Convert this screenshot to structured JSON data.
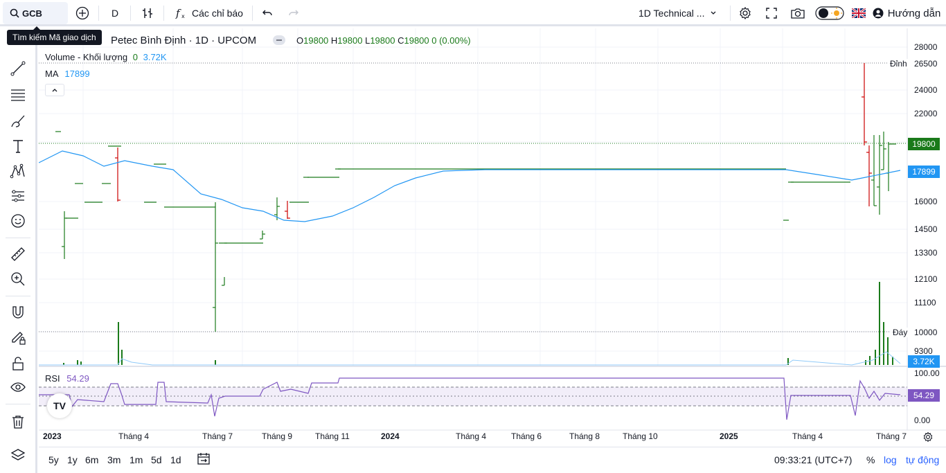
{
  "toolbar": {
    "symbol": "GCB",
    "interval": "D",
    "indicators_label": "Các chỉ báo",
    "layout_name": "1D Technical ...",
    "guide_label": "Hướng dẫn",
    "search_tooltip": "Tìm kiếm Mã giao dịch"
  },
  "legend": {
    "title": "Petec Bình Định · 1D · UPCOM",
    "open_label": "O",
    "open": "19800",
    "high_label": "H",
    "high": "19800",
    "low_label": "L",
    "low": "19800",
    "close_label": "C",
    "close": "19800",
    "change": "0 (0.00%)",
    "volume_label": "Volume - Khối lượng",
    "volume_a": "0",
    "volume_b": "3.72K",
    "ma_label": "MA",
    "ma_value": "17899",
    "rsi_label": "RSI",
    "rsi_value": "54.29"
  },
  "price_axis": {
    "ticks": [
      "28000",
      "24000",
      "22000",
      "16000",
      "14500",
      "13300",
      "12100",
      "11100",
      "9300"
    ],
    "peak_label": "Đỉnh",
    "peak_value": "26500",
    "trough_label": "Đáy",
    "trough_value": "10000",
    "last_price": "19800",
    "ma_tag": "17899",
    "volume_tag": "3.72K"
  },
  "rsi_axis": {
    "top": "100.00",
    "bottom": "0.00",
    "tag": "54.29"
  },
  "time_axis": {
    "labels": [
      {
        "t": "2023",
        "bold": true
      },
      {
        "t": "Tháng 4",
        "bold": false
      },
      {
        "t": "Tháng 7",
        "bold": false
      },
      {
        "t": "Tháng 9",
        "bold": false
      },
      {
        "t": "Tháng 11",
        "bold": false
      },
      {
        "t": "2024",
        "bold": true
      },
      {
        "t": "Tháng 4",
        "bold": false
      },
      {
        "t": "Tháng 6",
        "bold": false
      },
      {
        "t": "Tháng 8",
        "bold": false
      },
      {
        "t": "Tháng 10",
        "bold": false
      },
      {
        "t": "2025",
        "bold": true
      },
      {
        "t": "Tháng 4",
        "bold": false
      },
      {
        "t": "Tháng 7",
        "bold": false
      }
    ]
  },
  "bottom": {
    "ranges": [
      "5y",
      "1y",
      "6m",
      "3m",
      "1m",
      "5d",
      "1d"
    ],
    "time": "09:33:21 (UTC+7)",
    "percent": "%",
    "log": "log",
    "auto": "tự động"
  },
  "colors": {
    "up": "#1a7a1a",
    "down": "#cc0000",
    "ma": "#2196f3",
    "rsi": "#7e57c2",
    "accent": "#2962ff"
  },
  "icons": [
    "search-icon",
    "plus-circle-icon",
    "bars-icon",
    "fx-icon",
    "undo-icon",
    "redo-icon",
    "chevron-down-icon",
    "gear-icon",
    "fullscreen-icon",
    "camera-icon",
    "theme-toggle-icon",
    "flag-uk-icon",
    "user-icon",
    "cursor-icon",
    "trendline-icon",
    "fib-icon",
    "brush-icon",
    "text-icon",
    "pattern-icon",
    "forecast-icon",
    "emoji-icon",
    "ruler-icon",
    "zoom-icon",
    "magnet-icon",
    "lock-pencil-icon",
    "lock-icon",
    "eye-icon",
    "trash-icon",
    "layers-icon",
    "calendar-range-icon"
  ]
}
